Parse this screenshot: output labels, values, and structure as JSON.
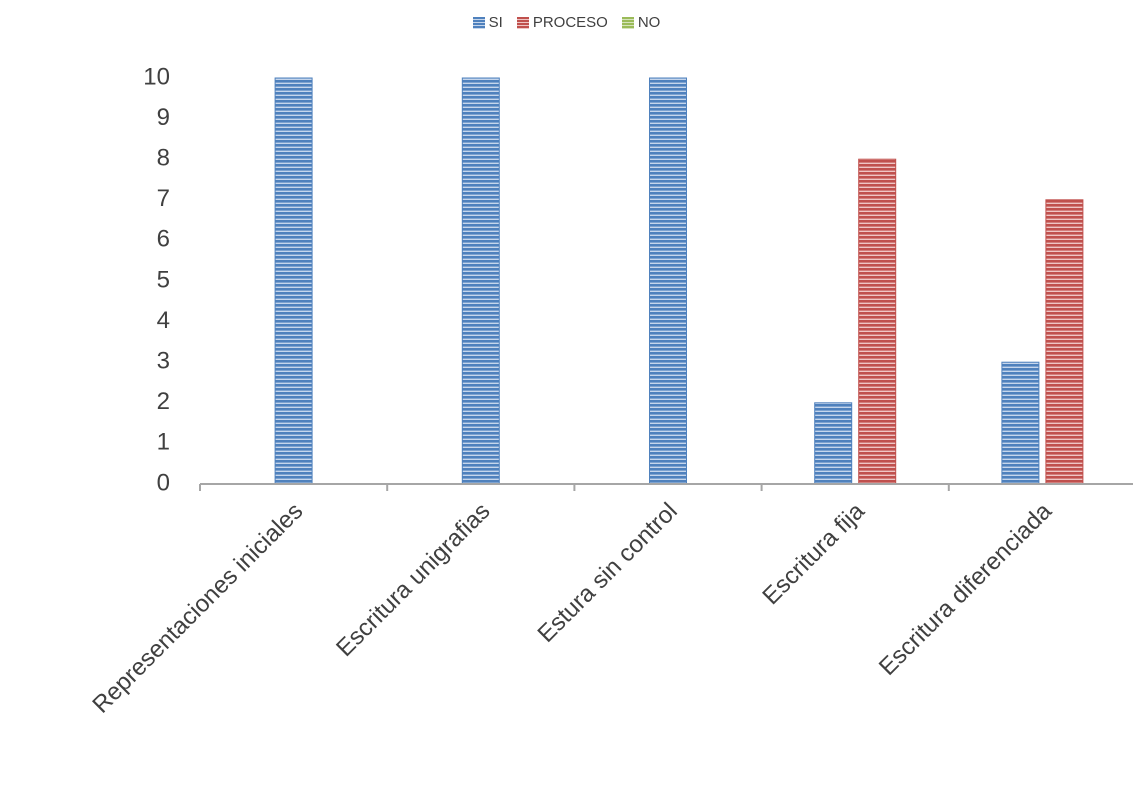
{
  "chart_data": {
    "type": "bar",
    "categories": [
      "Representaciones iniciales",
      "Escritura unigrafias",
      "Estura sin control",
      "Escritura fija",
      "Escritura diferenciada"
    ],
    "series": [
      {
        "name": "SI",
        "values": [
          10,
          10,
          10,
          2,
          3
        ],
        "color": "#4f81bd",
        "stripe": "#c6d6ec"
      },
      {
        "name": "PROCESO",
        "values": [
          0,
          0,
          0,
          8,
          7
        ],
        "color": "#c0504d",
        "stripe": "#efc5c4"
      },
      {
        "name": "NO",
        "values": [
          0,
          0,
          0,
          0,
          0
        ],
        "color": "#9bbb59",
        "stripe": "#d6e4bb"
      }
    ],
    "yticks": [
      "0",
      "1",
      "2",
      "3",
      "4",
      "5",
      "6",
      "7",
      "8",
      "9",
      "10"
    ],
    "ylim": [
      0,
      10
    ],
    "title": "",
    "xlabel": "",
    "ylabel": "",
    "legend": "top",
    "grid": false
  }
}
